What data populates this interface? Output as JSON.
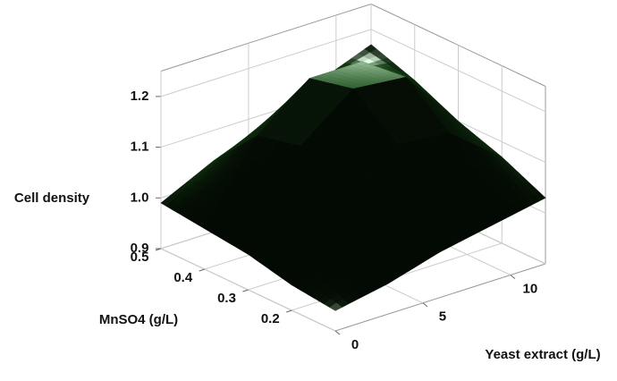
{
  "chart_data": {
    "type": "surface",
    "x_label": "Yeast extract (g/L)",
    "y_label": "MnSO4 (g/L)",
    "z_label": "Cell density",
    "x": [
      0,
      3,
      6,
      9,
      12
    ],
    "y": [
      0.1,
      0.2,
      0.3,
      0.4,
      0.5
    ],
    "z": [
      [
        0.94,
        0.96,
        0.99,
        1.01,
        1.03
      ],
      [
        0.95,
        1.09,
        1.16,
        1.15,
        1.07
      ],
      [
        0.97,
        1.15,
        1.23,
        1.22,
        1.1
      ],
      [
        0.98,
        1.13,
        1.21,
        1.21,
        1.14
      ],
      [
        0.99,
        1.04,
        1.08,
        1.13,
        1.17
      ]
    ],
    "xlim": [
      0,
      12
    ],
    "ylim": [
      0.1,
      0.5
    ],
    "zlim": [
      0.9,
      1.25
    ],
    "xticks": [
      0,
      5,
      10
    ],
    "yticks": [
      0.2,
      0.3,
      0.4,
      0.5
    ],
    "zticks": [
      0.9,
      {
        "value": 1,
        "label": "1.0"
      },
      1.1,
      1.2
    ],
    "color": "#2a7a2a",
    "grid": true
  }
}
